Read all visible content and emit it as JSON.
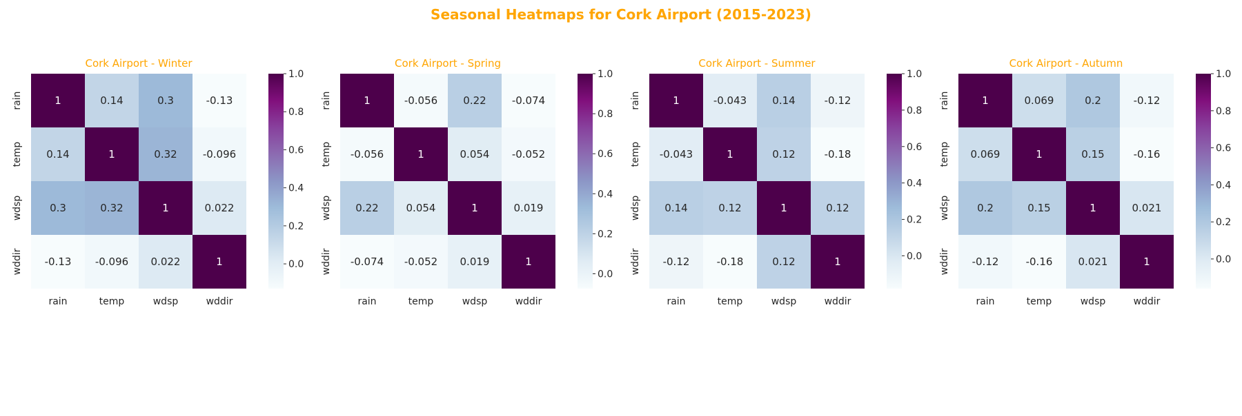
{
  "figure": {
    "title": "Seasonal Heatmaps for Cork Airport (2015-2023)",
    "title_color": "#FFA500",
    "colormap": "BuPu",
    "colormap_stops": [
      "#f7fcfd",
      "#e0ecf4",
      "#bfd3e6",
      "#9ebcda",
      "#8c96c6",
      "#8c6bb1",
      "#88419d",
      "#810f7c",
      "#4d004b"
    ]
  },
  "chart_data": [
    {
      "type": "heatmap",
      "title": "Cork Airport - Winter",
      "row_labels": [
        "rain",
        "temp",
        "wdsp",
        "wddir"
      ],
      "col_labels": [
        "rain",
        "temp",
        "wdsp",
        "wddir"
      ],
      "values": [
        [
          1,
          0.14,
          0.3,
          -0.13
        ],
        [
          0.14,
          1,
          0.32,
          -0.096
        ],
        [
          0.3,
          0.32,
          1,
          0.022
        ],
        [
          -0.13,
          -0.096,
          0.022,
          1
        ]
      ],
      "annotations": [
        [
          "1",
          "0.14",
          "0.3",
          "-0.13"
        ],
        [
          "0.14",
          "1",
          "0.32",
          "-0.096"
        ],
        [
          "0.3",
          "0.32",
          "1",
          "0.022"
        ],
        [
          "-0.13",
          "-0.096",
          "0.022",
          "1"
        ]
      ],
      "vmin": -0.13,
      "vmax": 1,
      "colorbar_ticks": [
        0.0,
        0.2,
        0.4,
        0.6,
        0.8,
        1.0
      ],
      "colorbar_tick_labels": [
        "0.0",
        "0.2",
        "0.4",
        "0.6",
        "0.8",
        "1.0"
      ]
    },
    {
      "type": "heatmap",
      "title": "Cork Airport - Spring",
      "row_labels": [
        "rain",
        "temp",
        "wdsp",
        "wddir"
      ],
      "col_labels": [
        "rain",
        "temp",
        "wdsp",
        "wddir"
      ],
      "values": [
        [
          1,
          -0.056,
          0.22,
          -0.074
        ],
        [
          -0.056,
          1,
          0.054,
          -0.052
        ],
        [
          0.22,
          0.054,
          1,
          0.019
        ],
        [
          -0.074,
          -0.052,
          0.019,
          1
        ]
      ],
      "annotations": [
        [
          "1",
          "-0.056",
          "0.22",
          "-0.074"
        ],
        [
          "-0.056",
          "1",
          "0.054",
          "-0.052"
        ],
        [
          "0.22",
          "0.054",
          "1",
          "0.019"
        ],
        [
          "-0.074",
          "-0.052",
          "0.019",
          "1"
        ]
      ],
      "vmin": -0.074,
      "vmax": 1,
      "colorbar_ticks": [
        0.0,
        0.2,
        0.4,
        0.6,
        0.8,
        1.0
      ],
      "colorbar_tick_labels": [
        "0.0",
        "0.2",
        "0.4",
        "0.6",
        "0.8",
        "1.0"
      ]
    },
    {
      "type": "heatmap",
      "title": "Cork Airport - Summer",
      "row_labels": [
        "rain",
        "temp",
        "wdsp",
        "wddir"
      ],
      "col_labels": [
        "rain",
        "temp",
        "wdsp",
        "wddir"
      ],
      "values": [
        [
          1,
          -0.043,
          0.14,
          -0.12
        ],
        [
          -0.043,
          1,
          0.12,
          -0.18
        ],
        [
          0.14,
          0.12,
          1,
          0.12
        ],
        [
          -0.12,
          -0.18,
          0.12,
          1
        ]
      ],
      "annotations": [
        [
          "1",
          "-0.043",
          "0.14",
          "-0.12"
        ],
        [
          "-0.043",
          "1",
          "0.12",
          "-0.18"
        ],
        [
          "0.14",
          "0.12",
          "1",
          "0.12"
        ],
        [
          "-0.12",
          "-0.18",
          "0.12",
          "1"
        ]
      ],
      "vmin": -0.18,
      "vmax": 1,
      "colorbar_ticks": [
        0.0,
        0.2,
        0.4,
        0.6,
        0.8,
        1.0
      ],
      "colorbar_tick_labels": [
        "0.0",
        "0.2",
        "0.4",
        "0.6",
        "0.8",
        "1.0"
      ]
    },
    {
      "type": "heatmap",
      "title": "Cork Airport - Autumn",
      "row_labels": [
        "rain",
        "temp",
        "wdsp",
        "wddir"
      ],
      "col_labels": [
        "rain",
        "temp",
        "wdsp",
        "wddir"
      ],
      "values": [
        [
          1,
          0.069,
          0.2,
          -0.12
        ],
        [
          0.069,
          1,
          0.15,
          -0.16
        ],
        [
          0.2,
          0.15,
          1,
          0.021
        ],
        [
          -0.12,
          -0.16,
          0.021,
          1
        ]
      ],
      "annotations": [
        [
          "1",
          "0.069",
          "0.2",
          "-0.12"
        ],
        [
          "0.069",
          "1",
          "0.15",
          "-0.16"
        ],
        [
          "0.2",
          "0.15",
          "1",
          "0.021"
        ],
        [
          "-0.12",
          "-0.16",
          "0.021",
          "1"
        ]
      ],
      "vmin": -0.16,
      "vmax": 1,
      "colorbar_ticks": [
        0.0,
        0.2,
        0.4,
        0.6,
        0.8,
        1.0
      ],
      "colorbar_tick_labels": [
        "0.0",
        "0.2",
        "0.4",
        "0.6",
        "0.8",
        "1.0"
      ]
    }
  ]
}
